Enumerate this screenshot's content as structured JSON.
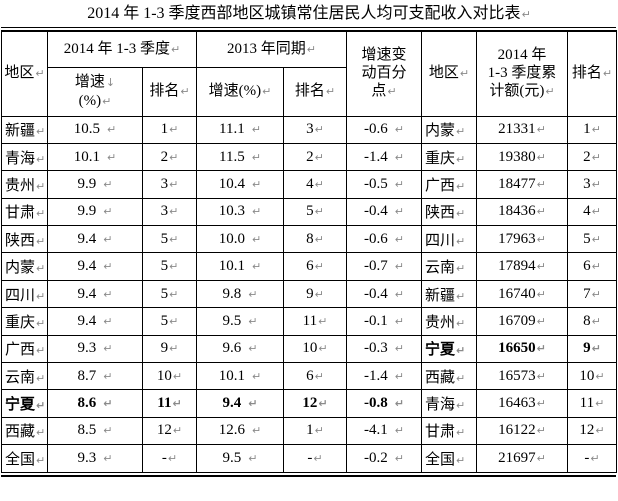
{
  "title": {
    "text": "2014 年 1-3 季度西部地区城镇常住居民人均可支配收入对比表"
  },
  "marks": {
    "cell_end": "↵",
    "line_break": "↓"
  },
  "colors": {
    "border": "#000000",
    "text": "#000000",
    "mark": "#8a8a8a",
    "background": "#ffffff"
  },
  "table": {
    "headers": {
      "region_left": "地区",
      "group_2014": "2014 年 1-3 季度",
      "group_2013": "2013 年同期",
      "growth_2014_lines": [
        "增速",
        "(%)"
      ],
      "rank_2014": "排名",
      "growth_2013": "增速(%)",
      "rank_2013": "排名",
      "change_lines": [
        "增速变",
        "动百分",
        "点"
      ],
      "region_right": "地区",
      "amount_lines": [
        "2014 年",
        "1-3 季度累",
        "计额(元)"
      ],
      "rank_right": "排名"
    },
    "rows": [
      {
        "region": "新疆",
        "growth2014": "10.5",
        "rank2014": "1",
        "growth2013": "11.1",
        "rank2013": "3",
        "change": "-0.6",
        "region2": "内蒙",
        "amount": "21331",
        "rank2": "1",
        "boldLeft": false,
        "boldRight": false
      },
      {
        "region": "青海",
        "growth2014": "10.1",
        "rank2014": "2",
        "growth2013": "11.5",
        "rank2013": "2",
        "change": "-1.4",
        "region2": "重庆",
        "amount": "19380",
        "rank2": "2",
        "boldLeft": false,
        "boldRight": false
      },
      {
        "region": "贵州",
        "growth2014": "9.9",
        "rank2014": "3",
        "growth2013": "10.4",
        "rank2013": "4",
        "change": "-0.5",
        "region2": "广西",
        "amount": "18477",
        "rank2": "3",
        "boldLeft": false,
        "boldRight": false
      },
      {
        "region": "甘肃",
        "growth2014": "9.9",
        "rank2014": "3",
        "growth2013": "10.3",
        "rank2013": "5",
        "change": "-0.4",
        "region2": "陕西",
        "amount": "18436",
        "rank2": "4",
        "boldLeft": false,
        "boldRight": false
      },
      {
        "region": "陕西",
        "growth2014": "9.4",
        "rank2014": "5",
        "growth2013": "10.0",
        "rank2013": "8",
        "change": "-0.6",
        "region2": "四川",
        "amount": "17963",
        "rank2": "5",
        "boldLeft": false,
        "boldRight": false
      },
      {
        "region": "内蒙",
        "growth2014": "9.4",
        "rank2014": "5",
        "growth2013": "10.1",
        "rank2013": "6",
        "change": "-0.7",
        "region2": "云南",
        "amount": "17894",
        "rank2": "6",
        "boldLeft": false,
        "boldRight": false
      },
      {
        "region": "四川",
        "growth2014": "9.4",
        "rank2014": "5",
        "growth2013": "9.8",
        "rank2013": "9",
        "change": "-0.4",
        "region2": "新疆",
        "amount": "16740",
        "rank2": "7",
        "boldLeft": false,
        "boldRight": false
      },
      {
        "region": "重庆",
        "growth2014": "9.4",
        "rank2014": "5",
        "growth2013": "9.5",
        "rank2013": "11",
        "change": "-0.1",
        "region2": "贵州",
        "amount": "16709",
        "rank2": "8",
        "boldLeft": false,
        "boldRight": false
      },
      {
        "region": "广西",
        "growth2014": "9.3",
        "rank2014": "9",
        "growth2013": "9.6",
        "rank2013": "10",
        "change": "-0.3",
        "region2": "宁夏",
        "amount": "16650",
        "rank2": "9",
        "boldLeft": false,
        "boldRight": true
      },
      {
        "region": "云南",
        "growth2014": "8.7",
        "rank2014": "10",
        "growth2013": "10.1",
        "rank2013": "6",
        "change": "-1.4",
        "region2": "西藏",
        "amount": "16573",
        "rank2": "10",
        "boldLeft": false,
        "boldRight": false
      },
      {
        "region": "宁夏",
        "growth2014": "8.6",
        "rank2014": "11",
        "growth2013": "9.4",
        "rank2013": "12",
        "change": "-0.8",
        "region2": "青海",
        "amount": "16463",
        "rank2": "11",
        "boldLeft": true,
        "boldRight": false
      },
      {
        "region": "西藏",
        "growth2014": "8.5",
        "rank2014": "12",
        "growth2013": "12.6",
        "rank2013": "1",
        "change": "-4.1",
        "region2": "甘肃",
        "amount": "16122",
        "rank2": "12",
        "boldLeft": false,
        "boldRight": false
      },
      {
        "region": "全国",
        "growth2014": "9.3",
        "rank2014": "-",
        "growth2013": "9.5",
        "rank2013": "-",
        "change": "-0.2",
        "region2": "全国",
        "amount": "21697",
        "rank2": "-",
        "boldLeft": false,
        "boldRight": false
      }
    ]
  }
}
